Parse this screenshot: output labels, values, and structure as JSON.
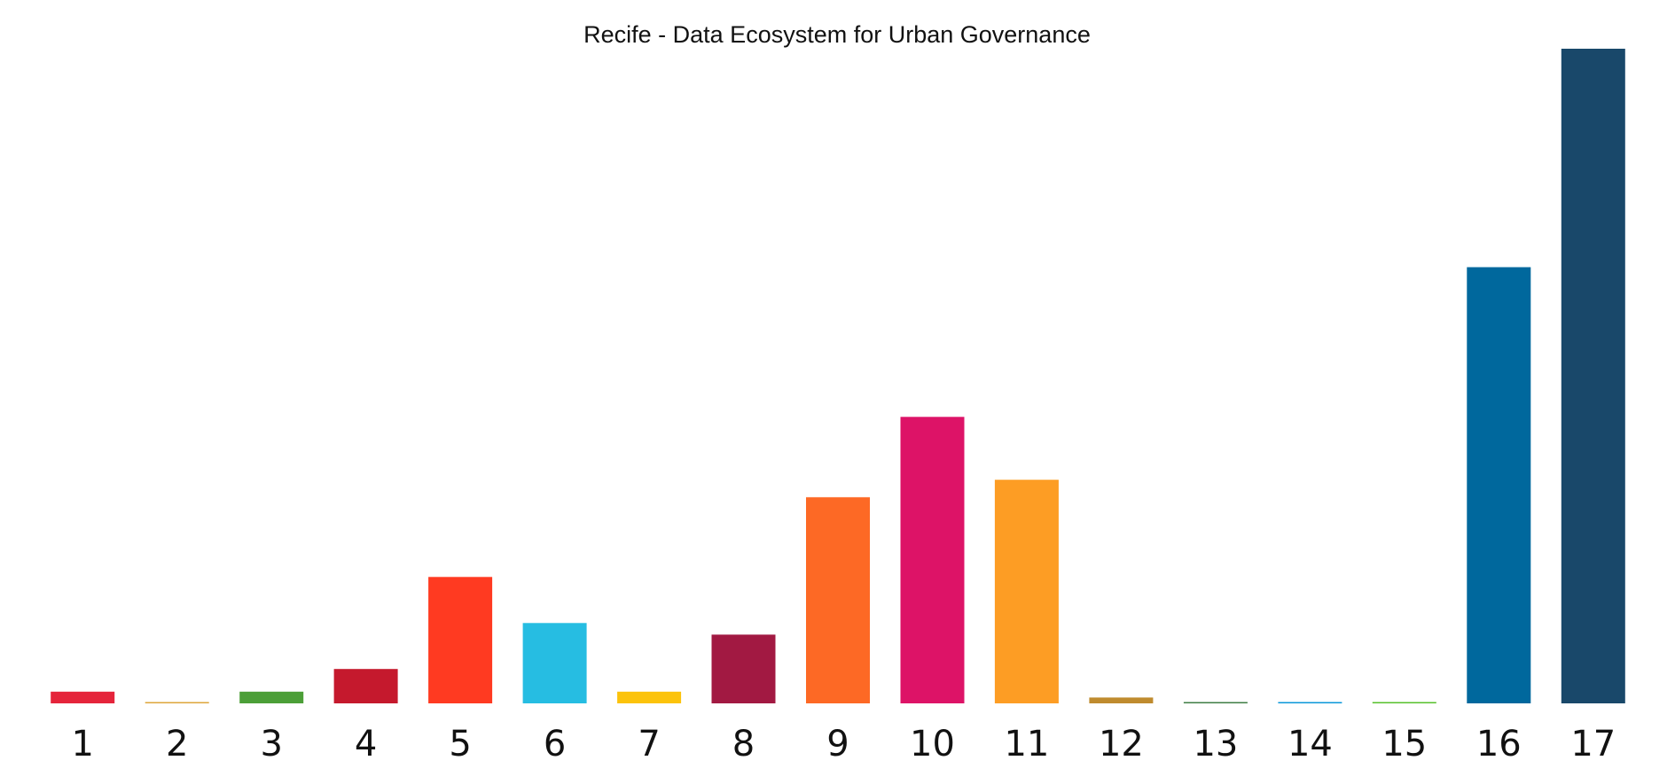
{
  "chart_data": {
    "type": "bar",
    "title": "Recife - Data Ecosystem for Urban Governance",
    "xlabel": "",
    "ylabel": "",
    "categories": [
      "1",
      "2",
      "3",
      "4",
      "5",
      "6",
      "7",
      "8",
      "9",
      "10",
      "11",
      "12",
      "13",
      "14",
      "15",
      "16",
      "17"
    ],
    "values": [
      1.8,
      0.2,
      1.8,
      5.3,
      19.5,
      12.4,
      1.8,
      10.6,
      31.8,
      44.2,
      34.5,
      0.9,
      0.2,
      0.2,
      0.2,
      67.3,
      101
    ],
    "colors": [
      "#E5243B",
      "#DDA63A",
      "#4C9F38",
      "#C5192D",
      "#FF3A21",
      "#26BDE2",
      "#FCC30B",
      "#A21942",
      "#FD6925",
      "#DD1367",
      "#FD9D24",
      "#BF8B2E",
      "#3F7E44",
      "#0A97D9",
      "#56C02B",
      "#00689D",
      "#19486A"
    ],
    "ylim": [
      0,
      101
    ],
    "grid": false,
    "legend": "none",
    "y_axis_visible": false
  }
}
